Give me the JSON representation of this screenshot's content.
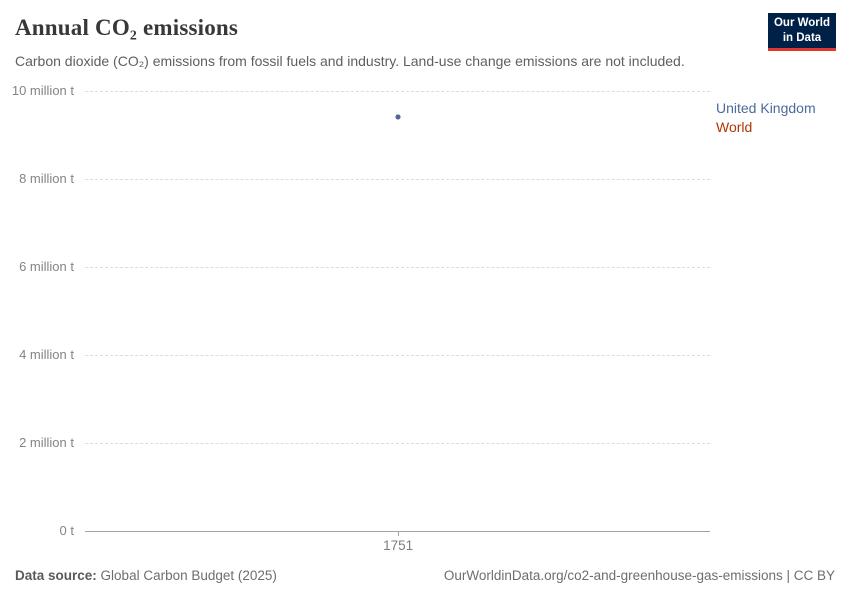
{
  "header": {
    "title": "Annual CO₂ emissions",
    "subtitle": "Carbon dioxide (CO₂) emissions from fossil fuels and industry. Land-use change emissions are not included.",
    "logo": {
      "line1": "Our World",
      "line2": "in Data",
      "bg_color": "#002147",
      "accent_color": "#e0362c"
    }
  },
  "chart_data": {
    "type": "scatter",
    "title": "Annual CO₂ emissions",
    "unit": "million t",
    "x": [
      1751
    ],
    "x_tick_labels": [
      "1751"
    ],
    "series": [
      {
        "name": "United Kingdom",
        "color": "#4c6a9c",
        "values": [
          9.4
        ]
      },
      {
        "name": "World",
        "color": "#b13507",
        "values": [
          9.4
        ]
      }
    ],
    "ylim": [
      0,
      10
    ],
    "yticks": [
      {
        "value": 0,
        "label": "0 t"
      },
      {
        "value": 2,
        "label": "2 million t"
      },
      {
        "value": 4,
        "label": "4 million t"
      },
      {
        "value": 6,
        "label": "6 million t"
      },
      {
        "value": 8,
        "label": "8 million t"
      },
      {
        "value": 10,
        "label": "10 million t"
      }
    ],
    "grid": "horizontal-dashed",
    "legend_position": "right"
  },
  "footer": {
    "datasource_label": "Data source:",
    "datasource": "Global Carbon Budget (2025)",
    "attribution": "OurWorldinData.org/co2-and-greenhouse-gas-emissions | CC BY"
  }
}
